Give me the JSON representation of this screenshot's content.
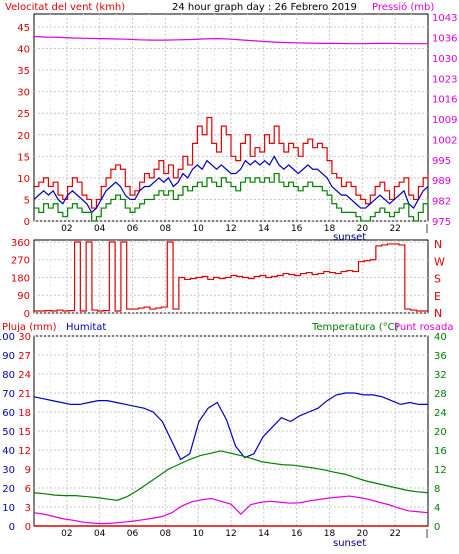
{
  "colors": {
    "wind": "#e00000",
    "gust": "#e00000",
    "pressure": "#e000e0",
    "direction": "#e00000",
    "humidity": "#0000c0",
    "temperature": "#008000",
    "dewpoint": "#e000e0",
    "rain": "#e00000",
    "grid": "#c8c8c8",
    "axis": "#000000"
  },
  "header": {
    "wind_label": "Velocitat del vent (kmh)",
    "title": "24 hour graph day : 26 Febrero 2019",
    "pressure_label": "Pressió (mb)",
    "rain_label": "Pluja (mm)",
    "humidity_label": "Humitat",
    "temp_label": "Temperatura (°C)",
    "dew_label": "Punt rosada",
    "sunset_label": "sunset"
  },
  "chart_data": [
    {
      "type": "line",
      "id": "wind-pressure",
      "x_ticks": [
        "02",
        "04",
        "06",
        "08",
        "10",
        "12",
        "14",
        "16",
        "18",
        "20",
        "22"
      ],
      "x_range": [
        0,
        24
      ],
      "y_left_ticks": [
        "0",
        "5",
        "10",
        "15",
        "20",
        "25",
        "30",
        "35",
        "40",
        "45"
      ],
      "y_left_range": [
        0,
        48
      ],
      "y_right_ticks": [
        "975",
        "982",
        "989",
        "995",
        "1002",
        "1009",
        "1016",
        "1023",
        "1030",
        "1036",
        "1043"
      ],
      "y_right_range": [
        975,
        1044
      ],
      "series": [
        {
          "key": "gust",
          "values": [
            8,
            9,
            10,
            8,
            9,
            6,
            5,
            8,
            10,
            9,
            6,
            5,
            3,
            5,
            8,
            10,
            12,
            13,
            12,
            8,
            6,
            7,
            9,
            11,
            10,
            12,
            14,
            11,
            13,
            10,
            12,
            15,
            13,
            18,
            22,
            20,
            24,
            18,
            16,
            22,
            20,
            15,
            14,
            18,
            20,
            15,
            17,
            16,
            20,
            18,
            22,
            18,
            16,
            18,
            17,
            15,
            18,
            19,
            17,
            18,
            17,
            14,
            11,
            10,
            8,
            9,
            8,
            6,
            5,
            4,
            6,
            8,
            9,
            7,
            5,
            8,
            9,
            10,
            6,
            5,
            8,
            10,
            11
          ]
        },
        {
          "key": "wind",
          "values": [
            5,
            6,
            7,
            6,
            7,
            5,
            4,
            6,
            7,
            6,
            5,
            4,
            2,
            3,
            5,
            7,
            8,
            9,
            8,
            6,
            5,
            5,
            7,
            8,
            8,
            9,
            10,
            9,
            10,
            8,
            9,
            11,
            10,
            12,
            13,
            12,
            14,
            13,
            12,
            13,
            12,
            11,
            11,
            12,
            14,
            13,
            14,
            13,
            14,
            13,
            15,
            13,
            12,
            13,
            12,
            11,
            12,
            13,
            12,
            12,
            11,
            10,
            8,
            7,
            6,
            6,
            5,
            4,
            3,
            3,
            4,
            5,
            6,
            5,
            4,
            5,
            6,
            7,
            4,
            3,
            5,
            7,
            8
          ]
        },
        {
          "key": "wind_min",
          "values": [
            3,
            2,
            4,
            3,
            4,
            2,
            1,
            3,
            4,
            3,
            2,
            2,
            0,
            1,
            3,
            4,
            5,
            6,
            5,
            3,
            2,
            3,
            4,
            5,
            5,
            6,
            7,
            6,
            7,
            5,
            6,
            8,
            7,
            8,
            9,
            8,
            10,
            9,
            8,
            10,
            9,
            8,
            7,
            9,
            10,
            9,
            10,
            9,
            10,
            9,
            11,
            9,
            8,
            9,
            8,
            7,
            8,
            9,
            8,
            8,
            7,
            6,
            4,
            3,
            2,
            2,
            2,
            1,
            0,
            0,
            1,
            2,
            3,
            2,
            1,
            2,
            3,
            4,
            1,
            0,
            2,
            4,
            5
          ]
        },
        {
          "key": "pressure",
          "values": [
            1036.5,
            1036.3,
            1036.2,
            1036.0,
            1035.9,
            1035.8,
            1035.7,
            1035.6,
            1035.4,
            1035.3,
            1035.3,
            1035.4,
            1035.5,
            1035.7,
            1035.8,
            1035.6,
            1035.3,
            1035.0,
            1034.7,
            1034.5,
            1034.4,
            1034.3,
            1034.2,
            1034.2,
            1034.1,
            1034.1,
            1034.2,
            1034.2,
            1034.1,
            1034.1,
            1034.1
          ]
        }
      ]
    },
    {
      "type": "line",
      "id": "direction",
      "y_ticks": [
        "0",
        "90",
        "180",
        "270",
        "360"
      ],
      "y_range": [
        0,
        370
      ],
      "compass": [
        "N",
        "W",
        "S",
        "E",
        "N"
      ],
      "series": [
        {
          "key": "direction",
          "values": [
            10,
            10,
            12,
            10,
            15,
            10,
            12,
            360,
            10,
            360,
            15,
            10,
            12,
            360,
            10,
            360,
            20,
            20,
            25,
            30,
            20,
            25,
            30,
            360,
            20,
            180,
            170,
            175,
            180,
            185,
            170,
            180,
            175,
            180,
            190,
            185,
            180,
            175,
            185,
            190,
            180,
            185,
            190,
            200,
            195,
            190,
            200,
            205,
            195,
            200,
            210,
            205,
            200,
            210,
            215,
            210,
            260,
            265,
            270,
            340,
            345,
            350,
            350,
            345,
            20,
            15,
            10,
            10,
            10
          ]
        }
      ]
    },
    {
      "type": "line",
      "id": "hum-temp",
      "y_rain_ticks": [
        "0",
        "3",
        "6",
        "9",
        "12",
        "15",
        "18",
        "21",
        "24",
        "27",
        "30"
      ],
      "y_rain_range": [
        0,
        30
      ],
      "y_hum_ticks": [
        "0",
        "10",
        "20",
        "30",
        "40",
        "50",
        "60",
        "70",
        "80",
        "90",
        "100"
      ],
      "y_hum_range": [
        0,
        100
      ],
      "y_temp_ticks": [
        "0",
        "4",
        "8",
        "12",
        "16",
        "20",
        "24",
        "28",
        "32",
        "36",
        "40"
      ],
      "y_temp_range": [
        0,
        40
      ],
      "series": [
        {
          "key": "humidity",
          "values": [
            68,
            67,
            66,
            65,
            64,
            64,
            65,
            66,
            66,
            65,
            64,
            63,
            62,
            60,
            55,
            45,
            35,
            38,
            55,
            62,
            65,
            56,
            42,
            36,
            38,
            47,
            52,
            57,
            55,
            58,
            60,
            62,
            66,
            69,
            70,
            70,
            69,
            69,
            68,
            66,
            64,
            65,
            64,
            64
          ]
        },
        {
          "key": "temperature",
          "values": [
            7,
            6.8,
            6.5,
            6.4,
            6.4,
            6.2,
            6.0,
            5.7,
            5.4,
            6.2,
            7.5,
            9.0,
            10.5,
            12.0,
            13.0,
            14.0,
            14.8,
            15.3,
            15.8,
            15.3,
            14.8,
            14.2,
            13.5,
            13.2,
            12.9,
            12.8,
            12.5,
            12.2,
            11.8,
            11.3,
            10.9,
            10.2,
            9.5,
            9.0,
            8.5,
            8.0,
            7.5,
            7.2,
            7.0
          ]
        },
        {
          "key": "dewpoint",
          "values": [
            2.8,
            2.5,
            2.0,
            1.5,
            1.2,
            0.8,
            0.6,
            0.5,
            0.6,
            0.8,
            1.0,
            1.3,
            1.6,
            2.0,
            2.8,
            4.2,
            5.1,
            5.5,
            5.8,
            5.2,
            4.6,
            2.5,
            4.5,
            5.0,
            5.2,
            5.0,
            4.8,
            4.9,
            5.3,
            5.6,
            5.9,
            6.1,
            6.3,
            6.0,
            5.6,
            5.0,
            4.5,
            3.8,
            3.2,
            3.0,
            2.8
          ]
        },
        {
          "key": "rain",
          "values": [
            0,
            0,
            0,
            0,
            0,
            0,
            0,
            0,
            0,
            0,
            0,
            0,
            0,
            0,
            0,
            0,
            0,
            0,
            0,
            0,
            0,
            0,
            0,
            0,
            0
          ]
        }
      ]
    }
  ]
}
